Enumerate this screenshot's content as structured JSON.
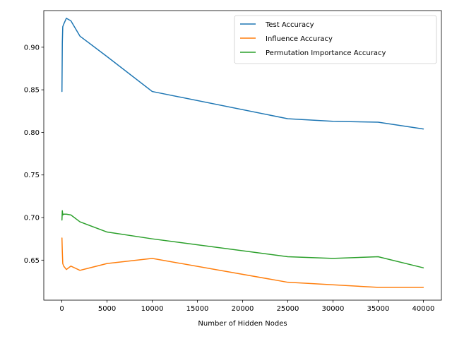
{
  "chart_data": {
    "type": "line",
    "title": "",
    "xlabel": "Number of Hidden Nodes",
    "ylabel": "",
    "xlim": [
      -2000,
      42000
    ],
    "ylim": [
      0.603,
      0.943
    ],
    "xticks": [
      0,
      5000,
      10000,
      15000,
      20000,
      25000,
      30000,
      35000,
      40000
    ],
    "yticks": [
      0.65,
      0.7,
      0.75,
      0.8,
      0.85,
      0.9
    ],
    "ytick_labels": [
      "0.65",
      "0.70",
      "0.75",
      "0.80",
      "0.85",
      "0.90"
    ],
    "grid": false,
    "legend_position": "top-right",
    "x": [
      10,
      50,
      100,
      200,
      500,
      1000,
      2000,
      5000,
      10000,
      25000,
      30000,
      35000,
      40000
    ],
    "series": [
      {
        "name": "Test Accuracy",
        "color": "#1f77b4",
        "values": [
          0.848,
          0.905,
          0.924,
          0.927,
          0.934,
          0.931,
          0.913,
          0.889,
          0.848,
          0.816,
          0.813,
          0.812,
          0.804
        ]
      },
      {
        "name": "Influence Accuracy",
        "color": "#ff7f0e",
        "values": [
          0.676,
          0.66,
          0.646,
          0.643,
          0.639,
          0.643,
          0.638,
          0.646,
          0.652,
          0.624,
          0.621,
          0.618,
          0.618
        ]
      },
      {
        "name": "Permutation Importance Accuracy",
        "color": "#2ca02c",
        "values": [
          0.697,
          0.708,
          0.703,
          0.704,
          0.704,
          0.703,
          0.695,
          0.683,
          0.675,
          0.654,
          0.652,
          0.654,
          0.641
        ]
      }
    ]
  }
}
